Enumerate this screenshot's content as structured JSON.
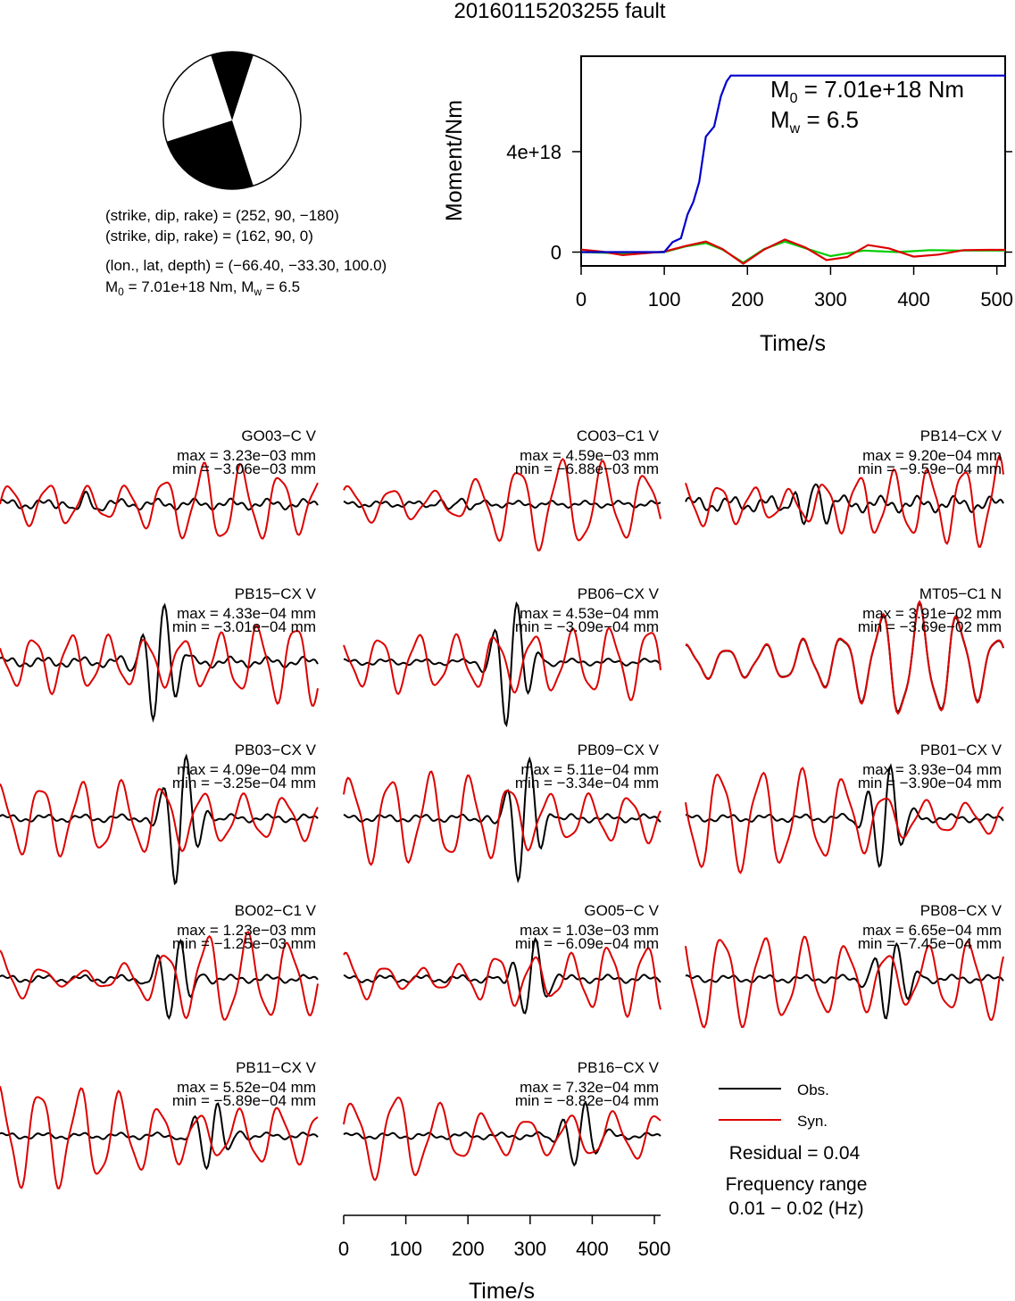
{
  "title": "20160115203255 fault",
  "focal_mechanism": {
    "colors": {
      "compression": "#000000",
      "dilatation": "#ffffff"
    },
    "plane1": "(strike, dip, rake) = (252, 90, −180)",
    "plane2": "(strike, dip, rake) = (162, 90, 0)",
    "location": "(lon., lat, depth) = (−66.40, −33.30, 100.0)",
    "moment_base": "M",
    "moment_sub": "0",
    "moment_value": " = 7.01e+18 Nm, M",
    "mw_sub": "w",
    "mw_value": " = 6.5"
  },
  "moment_panel": {
    "m0_base": "M",
    "m0_sub": "0",
    "m0_value": " = 7.01e+18 Nm",
    "mw_base": "M",
    "mw_sub": "w",
    "mw_value": " = 6.5"
  },
  "chart_data": [
    {
      "type": "line",
      "title": "",
      "xlabel": "Time/s",
      "ylabel": "Moment/Nm",
      "xlim": [
        0,
        510
      ],
      "ylim": [
        -5.5e+17,
        7.8e+18
      ],
      "xticks": [
        "0",
        "100",
        "200",
        "300",
        "400",
        "500"
      ],
      "yticks": [
        {
          "value": 0,
          "label": "0"
        },
        {
          "value": 4e+18,
          "label": "4e+18"
        }
      ],
      "series": [
        {
          "color": "#0000cc",
          "x": [
            0,
            40,
            100,
            110,
            120,
            128,
            135,
            142,
            150,
            160,
            168,
            175,
            180,
            200,
            300,
            400,
            510
          ],
          "y": [
            0,
            0,
            0,
            4e+17,
            5.5e+17,
            1.5e+18,
            2e+18,
            2.8e+18,
            4.6e+18,
            5e+18,
            6.2e+18,
            6.8e+18,
            7.03e+18,
            7.03e+18,
            7.03e+18,
            7.03e+18,
            7.03e+18
          ]
        },
        {
          "color": "#dd0000",
          "x": [
            0,
            25,
            50,
            75,
            100,
            125,
            150,
            170,
            195,
            220,
            245,
            270,
            295,
            320,
            345,
            370,
            400,
            430,
            460,
            490,
            510
          ],
          "y": [
            1e+17,
            2e+16,
            -1.2e+17,
            -5e+16,
            2e+16,
            2.4e+17,
            4.2e+17,
            1.2e+17,
            -4.6e+17,
            1e+17,
            5e+17,
            1.8e+17,
            -3.2e+17,
            -2e+17,
            2.8e+17,
            1.5e+17,
            -1.8e+17,
            -1e+17,
            8e+16,
            9e+16,
            9e+16
          ]
        },
        {
          "color": "#00cc00",
          "x": [
            0,
            50,
            100,
            125,
            150,
            170,
            195,
            220,
            245,
            270,
            300,
            340,
            380,
            420,
            460,
            510
          ],
          "y": [
            0,
            -5e+16,
            0,
            2.2e+17,
            3.6e+17,
            1e+17,
            -4.2e+17,
            1.2e+17,
            4.2e+17,
            1.5e+17,
            -1.6e+17,
            6e+16,
            0,
            8e+16,
            6e+16,
            6e+16
          ]
        }
      ]
    },
    {
      "type": "line",
      "title": "",
      "xlabel": "Time/s",
      "ylabel": "",
      "xlim": [
        0,
        510
      ],
      "xticks": [
        "0",
        "100",
        "200",
        "300",
        "400",
        "500"
      ],
      "legend": [
        {
          "label": "Obs.",
          "color": "#000000"
        },
        {
          "label": "Syn.",
          "color": "#dd0000"
        }
      ],
      "residual": "Residual = 0.04",
      "freq_label": "Frequency range",
      "freq_value": "0.01 − 0.02 (Hz)",
      "stations": [
        {
          "name": "GO03−C V",
          "max": "max = 3.23e−03 mm",
          "min": "min = −3.06e−03 mm",
          "obs": {
            "amp": 0.08,
            "period": 60,
            "phase": 0.4,
            "burst_t": 130,
            "burst_amp": 0.12
          },
          "syn": {
            "amp": 0.55,
            "period": 62,
            "phase": 0.0,
            "env": [
              0.45,
              0.5,
              0.35,
              0.6,
              1.0,
              0.8,
              0.6
            ]
          }
        },
        {
          "name": "CO03−C1 V",
          "max": "max = 4.59e−03 mm",
          "min": "min = −6.88e−03 mm",
          "obs": {
            "amp": 0.05,
            "period": 55,
            "phase": 1.1,
            "burst_t": 180,
            "burst_amp": 0.1
          },
          "syn": {
            "amp": 0.6,
            "period": 68,
            "phase": 0.7,
            "env": [
              0.4,
              0.35,
              0.25,
              0.8,
              1.0,
              0.85,
              0.6
            ]
          }
        },
        {
          "name": "PB14−CX V",
          "max": "max = 9.20e−04 mm",
          "min": "min = −9.59e−04 mm",
          "obs": {
            "amp": 0.12,
            "period": 60,
            "phase": 0.2,
            "burst_t": 200,
            "burst_amp": 0.35
          },
          "syn": {
            "amp": 0.6,
            "period": 56,
            "phase": 1.8,
            "env": [
              0.5,
              0.4,
              0.3,
              0.6,
              0.7,
              0.8,
              1.0
            ]
          }
        },
        {
          "name": "PB15−CX V",
          "max": "max = 4.33e−04 mm",
          "min": "min = −3.01e−04 mm",
          "obs": {
            "amp": 0.08,
            "period": 60,
            "phase": 0.5,
            "burst_t": 255,
            "burst_amp": 0.9
          },
          "syn": {
            "amp": 0.55,
            "period": 60,
            "phase": 2.2,
            "env": [
              0.5,
              0.7,
              0.6,
              0.55,
              0.6,
              0.9,
              1.0
            ]
          }
        },
        {
          "name": "PB06−CX V",
          "max": "max = 4.53e−04 mm",
          "min": "min = −3.09e−04 mm",
          "obs": {
            "amp": 0.05,
            "period": 60,
            "phase": 0.8,
            "burst_t": 270,
            "burst_amp": 0.95
          },
          "syn": {
            "amp": 0.55,
            "period": 62,
            "phase": 2.0,
            "env": [
              0.5,
              0.7,
              0.6,
              0.65,
              0.7,
              0.8,
              0.9
            ]
          }
        },
        {
          "name": "MT05−C1 N",
          "max": "max = 3.91e−02 mm",
          "min": "min = −3.69e−02 mm",
          "obs": {
            "amp": 0.0,
            "period": 60,
            "phase": 0.0,
            "burst_t": 0,
            "burst_amp": 0.0,
            "follow_syn": true
          },
          "syn": {
            "amp": 0.75,
            "period": 62,
            "phase": 1.2,
            "env": [
              0.3,
              0.25,
              0.35,
              0.5,
              1.0,
              0.9,
              0.4
            ]
          }
        },
        {
          "name": "PB03−CX V",
          "max": "max = 4.09e−04 mm",
          "min": "min = −3.25e−04 mm",
          "obs": {
            "amp": 0.06,
            "period": 60,
            "phase": 0.3,
            "burst_t": 290,
            "burst_amp": 0.95
          },
          "syn": {
            "amp": 0.55,
            "period": 65,
            "phase": 1.5,
            "env": [
              0.8,
              0.85,
              0.85,
              0.8,
              0.6,
              0.5,
              0.5
            ]
          }
        },
        {
          "name": "PB09−CX V",
          "max": "max = 5.11e−04 mm",
          "min": "min = −3.34e−04 mm",
          "obs": {
            "amp": 0.06,
            "period": 60,
            "phase": 1.0,
            "burst_t": 290,
            "burst_amp": 0.9
          },
          "syn": {
            "amp": 0.6,
            "period": 64,
            "phase": 0.5,
            "env": [
              0.9,
              0.95,
              0.95,
              0.8,
              0.5,
              0.5,
              0.5
            ]
          }
        },
        {
          "name": "PB01−CX V",
          "max": "max = 3.93e−04 mm",
          "min": "min = −3.90e−04 mm",
          "obs": {
            "amp": 0.06,
            "period": 60,
            "phase": 0.7,
            "burst_t": 320,
            "burst_amp": 0.8
          },
          "syn": {
            "amp": 0.65,
            "period": 66,
            "phase": 2.6,
            "env": [
              1.0,
              1.0,
              0.95,
              0.8,
              0.4,
              0.3,
              0.3
            ]
          }
        },
        {
          "name": "BO02−C1 V",
          "max": "max = 1.23e−03 mm",
          "min": "min = −1.25e−03 mm",
          "obs": {
            "amp": 0.06,
            "period": 60,
            "phase": 0.4,
            "burst_t": 280,
            "burst_amp": 0.6
          },
          "syn": {
            "amp": 0.6,
            "period": 66,
            "phase": 1.4,
            "env": [
              0.6,
              0.15,
              0.2,
              0.55,
              1.0,
              0.9,
              0.7
            ]
          }
        },
        {
          "name": "GO05−C V",
          "max": "max = 1.03e−03 mm",
          "min": "min = −6.09e−04 mm",
          "obs": {
            "amp": 0.06,
            "period": 60,
            "phase": 0.9,
            "burst_t": 300,
            "burst_amp": 0.55
          },
          "syn": {
            "amp": 0.5,
            "period": 60,
            "phase": 0.9,
            "env": [
              0.7,
              0.25,
              0.3,
              0.7,
              0.5,
              0.9,
              0.9
            ]
          }
        },
        {
          "name": "PB08−CX V",
          "max": "max = 6.65e−04 mm",
          "min": "min = −7.45e−04 mm",
          "obs": {
            "amp": 0.06,
            "period": 60,
            "phase": 0.6,
            "burst_t": 330,
            "burst_amp": 0.6
          },
          "syn": {
            "amp": 0.65,
            "period": 66,
            "phase": 2.2,
            "env": [
              1.0,
              0.9,
              0.8,
              0.7,
              0.5,
              0.7,
              0.8
            ]
          }
        },
        {
          "name": "PB11−CX V",
          "max": "max = 5.52e−04 mm",
          "min": "min = −5.89e−04 mm",
          "obs": {
            "amp": 0.05,
            "period": 60,
            "phase": 0.5,
            "burst_t": 340,
            "burst_amp": 0.5
          },
          "syn": {
            "amp": 0.65,
            "period": 64,
            "phase": 1.6,
            "env": [
              1.0,
              1.0,
              0.9,
              0.6,
              0.4,
              0.6,
              0.5
            ]
          }
        },
        {
          "name": "PB16−CX V",
          "max": "max = 7.32e−04 mm",
          "min": "min = −8.82e−04 mm",
          "obs": {
            "amp": 0.05,
            "period": 60,
            "phase": 0.3,
            "burst_t": 380,
            "burst_amp": 0.5
          },
          "syn": {
            "amp": 0.6,
            "period": 70,
            "phase": 0.3,
            "env": [
              0.7,
              1.0,
              0.6,
              0.4,
              0.4,
              0.5,
              0.5
            ]
          }
        }
      ]
    }
  ]
}
